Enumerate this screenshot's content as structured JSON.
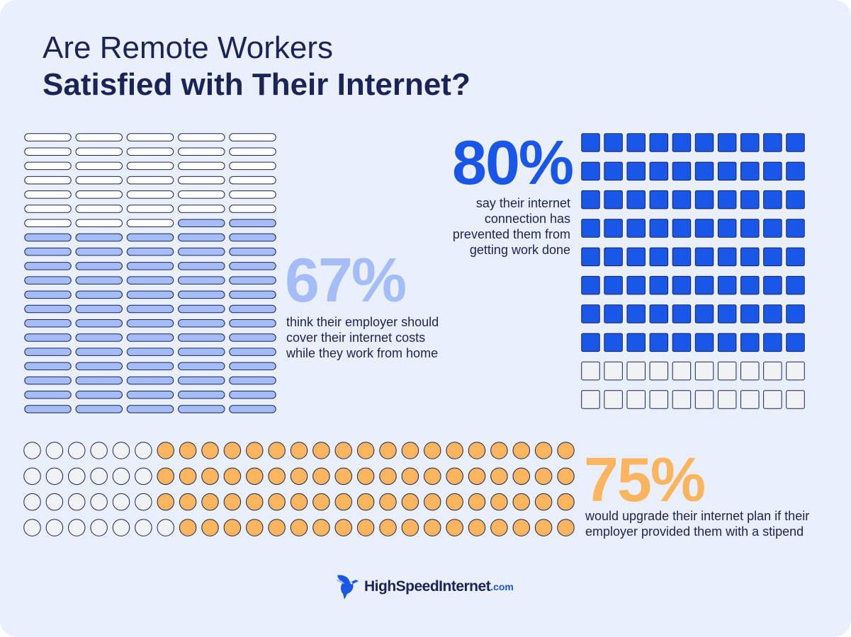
{
  "title": {
    "line1": "Are Remote Workers",
    "line2": "Satisfied with Their Internet?"
  },
  "chart_data": [
    {
      "type": "waffle",
      "mark": "pill",
      "value": 67,
      "total_units": 100,
      "label": "67%",
      "description": "think their employer should cover their internet costs while they work from home",
      "colors": {
        "filled": "#a4bdf7",
        "empty": "#ffffff",
        "stroke": "#1b2456"
      }
    },
    {
      "type": "waffle",
      "mark": "square",
      "value": 80,
      "total_units": 100,
      "label": "80%",
      "description": "say their internet connection has prevented them from getting work done",
      "colors": {
        "filled": "#1b57e6",
        "empty": "#f1f2f6",
        "stroke": "#1b2456"
      }
    },
    {
      "type": "waffle",
      "mark": "circle",
      "value": 75,
      "total_units": 100,
      "label": "75%",
      "description": "would upgrade their internet plan if their employer provided them with a stipend",
      "colors": {
        "filled": "#fbb55e",
        "empty": "#f1f2f6",
        "stroke": "#1b2456"
      }
    }
  ],
  "colors": {
    "background": "#e9effc",
    "title": "#1b2456",
    "stat67": "#a4bdf7",
    "stat80": "#1b57e6",
    "stat75": "#fbb55e"
  },
  "logo": {
    "icon": "hummingbird-icon",
    "brand": "HighSpeedInternet",
    "tld": ".com"
  }
}
